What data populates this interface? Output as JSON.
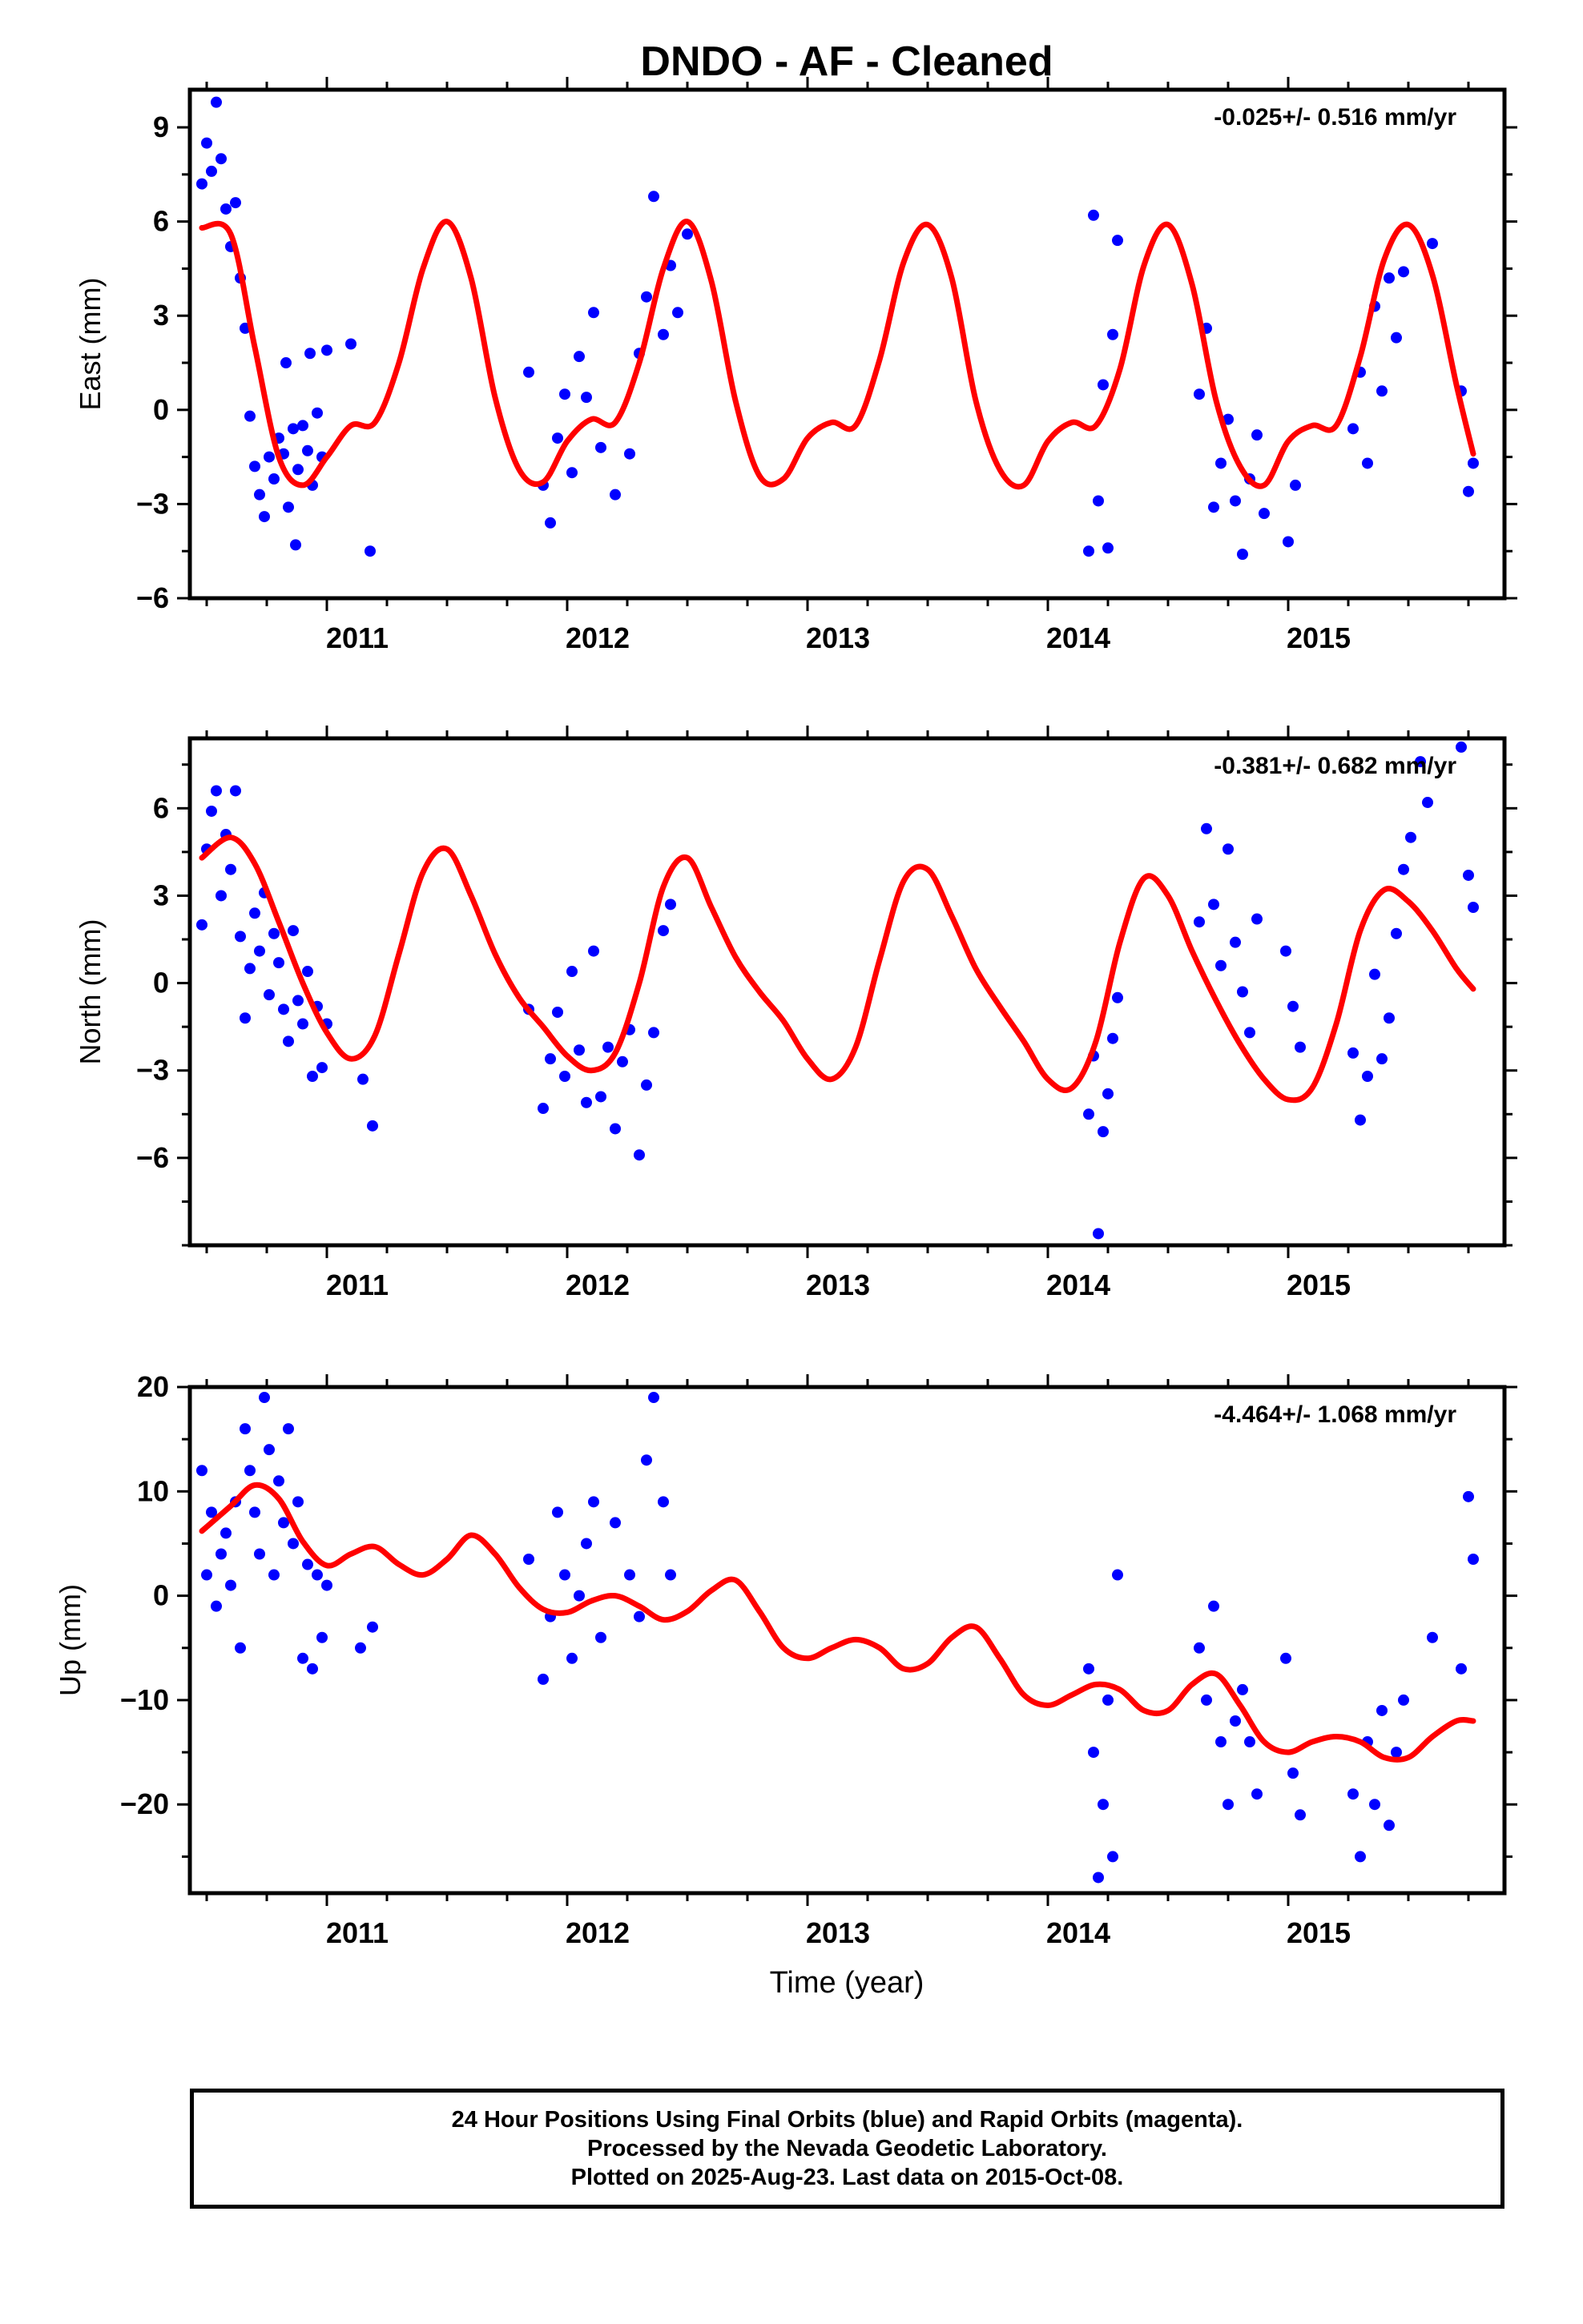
{
  "title": "DNDO  - AF - Cleaned",
  "colors": {
    "points": "#0000ff",
    "fit": "#ff0000",
    "axes": "#000000"
  },
  "footer": {
    "line1": "24 Hour Positions Using Final Orbits (blue) and Rapid Orbits (magenta).",
    "line2": "Processed by the Nevada Geodetic Laboratory.",
    "line3": "Plotted on 2025-Aug-23. Last data on 2015-Oct-08."
  },
  "chart_data": [
    {
      "type": "scatter",
      "ylabel": "East (mm)",
      "xlabel": "",
      "rate_label": "-0.025+/- 0.516 mm/yr",
      "xlim": [
        2010.43,
        2015.9
      ],
      "ylim": [
        -6,
        10.2
      ],
      "x_ticks": [
        2011,
        2012,
        2013,
        2014,
        2015
      ],
      "y_ticks": [
        -6,
        -3,
        0,
        3,
        6,
        9
      ],
      "grid": false,
      "series": [
        {
          "kind": "scatter",
          "x": [
            2010.48,
            2010.5,
            2010.52,
            2010.54,
            2010.56,
            2010.58,
            2010.6,
            2010.62,
            2010.64,
            2010.66,
            2010.68,
            2010.7,
            2010.72,
            2010.74,
            2010.76,
            2010.78,
            2010.8,
            2010.82,
            2010.84,
            2010.86,
            2010.88,
            2010.9,
            2010.92,
            2010.94,
            2010.96,
            2010.98,
            2011.0,
            2010.83,
            2010.87,
            2010.93,
            2011.1,
            2011.18,
            2011.84,
            2011.9,
            2011.93,
            2011.96,
            2011.99,
            2012.02,
            2012.05,
            2012.08,
            2012.11,
            2012.14,
            2012.2,
            2012.26,
            2012.3,
            2012.33,
            2012.36,
            2012.4,
            2012.43,
            2012.46,
            2012.5,
            2014.17,
            2014.19,
            2014.21,
            2014.23,
            2014.25,
            2014.27,
            2014.29,
            2014.63,
            2014.66,
            2014.69,
            2014.72,
            2014.75,
            2014.78,
            2014.81,
            2014.84,
            2014.87,
            2014.9,
            2015.0,
            2015.03,
            2015.27,
            2015.3,
            2015.33,
            2015.36,
            2015.39,
            2015.42,
            2015.45,
            2015.48,
            2015.6,
            2015.72,
            2015.75,
            2015.77
          ],
          "y": [
            7.2,
            8.5,
            7.6,
            9.8,
            8.0,
            6.4,
            5.2,
            6.6,
            4.2,
            2.6,
            -0.2,
            -1.8,
            -2.7,
            -3.4,
            -1.5,
            -2.2,
            -0.9,
            -1.4,
            -3.1,
            -0.6,
            -1.9,
            -0.5,
            -1.3,
            -2.4,
            -0.1,
            -1.5,
            1.9,
            1.5,
            -4.3,
            1.8,
            2.1,
            -4.5,
            1.2,
            -2.4,
            -3.6,
            -0.9,
            0.5,
            -2.0,
            1.7,
            0.4,
            3.1,
            -1.2,
            -2.7,
            -1.4,
            1.8,
            3.6,
            6.8,
            2.4,
            4.6,
            3.1,
            5.6,
            -4.5,
            6.2,
            -2.9,
            0.8,
            -4.4,
            2.4,
            5.4,
            0.5,
            2.6,
            -3.1,
            -1.7,
            -0.3,
            -2.9,
            -4.6,
            -2.2,
            -0.8,
            -3.3,
            -4.2,
            -2.4,
            -0.6,
            1.2,
            -1.7,
            3.3,
            0.6,
            4.2,
            2.3,
            4.4,
            5.3,
            0.6,
            -2.6,
            -1.7
          ]
        },
        {
          "kind": "line",
          "x": [
            2010.48,
            2010.6,
            2010.7,
            2010.8,
            2010.9,
            2011.0,
            2011.1,
            2011.2,
            2011.3,
            2011.4,
            2011.5,
            2011.6,
            2011.7,
            2011.8,
            2011.9,
            2012.0,
            2012.1,
            2012.2,
            2012.3,
            2012.4,
            2012.5,
            2012.6,
            2012.7,
            2012.8,
            2012.9,
            2013.0,
            2013.1,
            2013.2,
            2013.3,
            2013.4,
            2013.5,
            2013.6,
            2013.7,
            2013.8,
            2013.9,
            2014.0,
            2014.1,
            2014.2,
            2014.3,
            2014.4,
            2014.5,
            2014.6,
            2014.7,
            2014.8,
            2014.9,
            2015.0,
            2015.1,
            2015.2,
            2015.3,
            2015.4,
            2015.5,
            2015.6,
            2015.7,
            2015.77
          ],
          "y": [
            5.8,
            5.6,
            2.0,
            -1.5,
            -2.4,
            -1.5,
            -0.5,
            -0.4,
            1.5,
            4.5,
            6.0,
            4.2,
            0.4,
            -1.9,
            -2.3,
            -1.0,
            -0.3,
            -0.4,
            1.5,
            4.5,
            6.0,
            4.1,
            0.3,
            -2.1,
            -2.2,
            -0.9,
            -0.4,
            -0.5,
            1.6,
            4.7,
            5.9,
            4.2,
            0.3,
            -1.9,
            -2.4,
            -1.0,
            -0.4,
            -0.5,
            1.3,
            4.6,
            5.9,
            4.0,
            0.3,
            -1.8,
            -2.4,
            -1.0,
            -0.5,
            -0.5,
            1.7,
            4.8,
            5.9,
            4.3,
            0.8,
            -1.4
          ]
        }
      ]
    },
    {
      "type": "scatter",
      "ylabel": "North (mm)",
      "xlabel": "",
      "rate_label": "-0.381+/- 0.682 mm/yr",
      "xlim": [
        2010.43,
        2015.9
      ],
      "ylim": [
        -9,
        8.4
      ],
      "x_ticks": [
        2011,
        2012,
        2013,
        2014,
        2015
      ],
      "y_ticks": [
        -6,
        -3,
        0,
        3,
        6
      ],
      "grid": false,
      "series": [
        {
          "kind": "scatter",
          "x": [
            2010.48,
            2010.5,
            2010.52,
            2010.54,
            2010.56,
            2010.58,
            2010.6,
            2010.62,
            2010.64,
            2010.66,
            2010.68,
            2010.7,
            2010.72,
            2010.74,
            2010.76,
            2010.78,
            2010.8,
            2010.82,
            2010.84,
            2010.86,
            2010.88,
            2010.9,
            2010.92,
            2010.94,
            2010.96,
            2010.98,
            2011.0,
            2011.15,
            2011.19,
            2011.84,
            2011.9,
            2011.93,
            2011.96,
            2011.99,
            2012.02,
            2012.05,
            2012.08,
            2012.11,
            2012.14,
            2012.17,
            2012.2,
            2012.23,
            2012.26,
            2012.3,
            2012.33,
            2012.36,
            2012.4,
            2012.43,
            2014.17,
            2014.19,
            2014.21,
            2014.23,
            2014.25,
            2014.27,
            2014.29,
            2014.63,
            2014.66,
            2014.69,
            2014.72,
            2014.75,
            2014.78,
            2014.81,
            2014.84,
            2014.87,
            2014.99,
            2015.02,
            2015.05,
            2015.27,
            2015.3,
            2015.33,
            2015.36,
            2015.39,
            2015.42,
            2015.45,
            2015.48,
            2015.51,
            2015.55,
            2015.58,
            2015.72,
            2015.75,
            2015.77
          ],
          "y": [
            2.0,
            4.6,
            5.9,
            6.6,
            3.0,
            5.1,
            3.9,
            6.6,
            1.6,
            -1.2,
            0.5,
            2.4,
            1.1,
            3.1,
            -0.4,
            1.7,
            0.7,
            -0.9,
            -2.0,
            1.8,
            -0.6,
            -1.4,
            0.4,
            -3.2,
            -0.8,
            -2.9,
            -1.4,
            -3.3,
            -4.9,
            -0.9,
            -4.3,
            -2.6,
            -1.0,
            -3.2,
            0.4,
            -2.3,
            -4.1,
            1.1,
            -3.9,
            -2.2,
            -5.0,
            -2.7,
            -1.6,
            -5.9,
            -3.5,
            -1.7,
            1.8,
            2.7,
            -4.5,
            -2.5,
            -8.6,
            -5.1,
            -3.8,
            -1.9,
            -0.5,
            2.1,
            5.3,
            2.7,
            0.6,
            4.6,
            1.4,
            -0.3,
            -1.7,
            2.2,
            1.1,
            -0.8,
            -2.2,
            -2.4,
            -4.7,
            -3.2,
            0.3,
            -2.6,
            -1.2,
            1.7,
            3.9,
            5.0,
            7.6,
            6.2,
            8.1,
            3.7,
            2.6
          ]
        },
        {
          "kind": "line",
          "x": [
            2010.48,
            2010.6,
            2010.7,
            2010.8,
            2010.9,
            2011.0,
            2011.1,
            2011.2,
            2011.3,
            2011.4,
            2011.5,
            2011.6,
            2011.7,
            2011.8,
            2011.9,
            2012.0,
            2012.1,
            2012.2,
            2012.3,
            2012.4,
            2012.5,
            2012.6,
            2012.7,
            2012.8,
            2012.9,
            2013.0,
            2013.1,
            2013.2,
            2013.3,
            2013.4,
            2013.5,
            2013.6,
            2013.7,
            2013.8,
            2013.9,
            2014.0,
            2014.1,
            2014.2,
            2014.3,
            2014.4,
            2014.5,
            2014.6,
            2014.7,
            2014.8,
            2014.9,
            2015.0,
            2015.1,
            2015.2,
            2015.3,
            2015.4,
            2015.5,
            2015.6,
            2015.7,
            2015.77
          ],
          "y": [
            4.3,
            5.0,
            4.1,
            2.1,
            0.0,
            -1.7,
            -2.6,
            -1.8,
            1.0,
            3.8,
            4.6,
            3.0,
            1.0,
            -0.5,
            -1.5,
            -2.5,
            -3.0,
            -2.4,
            0.0,
            3.3,
            4.3,
            2.6,
            0.9,
            -0.3,
            -1.3,
            -2.6,
            -3.3,
            -2.2,
            0.8,
            3.5,
            3.9,
            2.3,
            0.5,
            -0.8,
            -2.0,
            -3.3,
            -3.6,
            -2.0,
            1.4,
            3.6,
            3.0,
            1.1,
            -0.6,
            -2.1,
            -3.3,
            -4.0,
            -3.6,
            -1.4,
            1.8,
            3.2,
            2.8,
            1.8,
            0.5,
            -0.2
          ]
        }
      ]
    },
    {
      "type": "scatter",
      "ylabel": "Up (mm)",
      "xlabel": "Time (year)",
      "rate_label": "-4.464+/- 1.068 mm/yr",
      "xlim": [
        2010.43,
        2015.9
      ],
      "ylim": [
        -28.5,
        20
      ],
      "x_ticks": [
        2011,
        2012,
        2013,
        2014,
        2015
      ],
      "y_ticks": [
        -20,
        -10,
        0,
        10,
        20
      ],
      "grid": false,
      "series": [
        {
          "kind": "scatter",
          "x": [
            2010.48,
            2010.5,
            2010.52,
            2010.54,
            2010.56,
            2010.58,
            2010.6,
            2010.62,
            2010.64,
            2010.66,
            2010.68,
            2010.7,
            2010.72,
            2010.74,
            2010.76,
            2010.78,
            2010.8,
            2010.82,
            2010.84,
            2010.86,
            2010.88,
            2010.9,
            2010.92,
            2010.94,
            2010.96,
            2010.98,
            2011.0,
            2011.14,
            2011.19,
            2011.84,
            2011.9,
            2011.93,
            2011.96,
            2011.99,
            2012.02,
            2012.05,
            2012.08,
            2012.11,
            2012.14,
            2012.2,
            2012.26,
            2012.3,
            2012.33,
            2012.36,
            2012.4,
            2012.43,
            2014.17,
            2014.19,
            2014.21,
            2014.23,
            2014.25,
            2014.27,
            2014.29,
            2014.63,
            2014.66,
            2014.69,
            2014.72,
            2014.75,
            2014.78,
            2014.81,
            2014.84,
            2014.87,
            2014.99,
            2015.02,
            2015.05,
            2015.27,
            2015.3,
            2015.33,
            2015.36,
            2015.39,
            2015.42,
            2015.45,
            2015.48,
            2015.6,
            2015.72,
            2015.75,
            2015.77
          ],
          "y": [
            12.0,
            2.0,
            8.0,
            -1.0,
            4.0,
            6.0,
            1.0,
            9.0,
            -5.0,
            16.0,
            12.0,
            8.0,
            4.0,
            19.0,
            14.0,
            2.0,
            11.0,
            7.0,
            16.0,
            5.0,
            9.0,
            -6.0,
            3.0,
            -7.0,
            2.0,
            -4.0,
            1.0,
            -5.0,
            -3.0,
            3.5,
            -8.0,
            -2.0,
            8.0,
            2.0,
            -6.0,
            0.0,
            5.0,
            9.0,
            -4.0,
            7.0,
            2.0,
            -2.0,
            13.0,
            19.0,
            9.0,
            2.0,
            -7.0,
            -15.0,
            -27.0,
            -20.0,
            -10.0,
            -25.0,
            2.0,
            -5.0,
            -10.0,
            -1.0,
            -14.0,
            -20.0,
            -12.0,
            -9.0,
            -14.0,
            -19.0,
            -6.0,
            -17.0,
            -21.0,
            -19.0,
            -25.0,
            -14.0,
            -20.0,
            -11.0,
            -22.0,
            -15.0,
            -10.0,
            -4.0,
            -7.0,
            9.5,
            3.5
          ]
        },
        {
          "kind": "line",
          "x": [
            2010.48,
            2010.6,
            2010.7,
            2010.8,
            2010.9,
            2011.0,
            2011.1,
            2011.2,
            2011.3,
            2011.4,
            2011.5,
            2011.6,
            2011.7,
            2011.8,
            2011.9,
            2012.0,
            2012.1,
            2012.2,
            2012.3,
            2012.4,
            2012.5,
            2012.6,
            2012.7,
            2012.8,
            2012.9,
            2013.0,
            2013.1,
            2013.2,
            2013.3,
            2013.4,
            2013.5,
            2013.6,
            2013.7,
            2013.8,
            2013.9,
            2014.0,
            2014.1,
            2014.2,
            2014.3,
            2014.4,
            2014.5,
            2014.6,
            2014.7,
            2014.8,
            2014.9,
            2015.0,
            2015.1,
            2015.2,
            2015.3,
            2015.4,
            2015.5,
            2015.6,
            2015.7,
            2015.77
          ],
          "y": [
            6.2,
            8.6,
            10.6,
            9.3,
            5.2,
            2.9,
            4.0,
            4.7,
            3.0,
            2.0,
            3.5,
            5.8,
            4.0,
            0.8,
            -1.3,
            -1.6,
            -0.5,
            0.0,
            -1.0,
            -2.3,
            -1.5,
            0.5,
            1.5,
            -1.5,
            -5.0,
            -6.0,
            -5.0,
            -4.2,
            -5.0,
            -7.0,
            -6.5,
            -4.0,
            -3.0,
            -6.0,
            -9.5,
            -10.5,
            -9.5,
            -8.5,
            -9.0,
            -11.0,
            -11.0,
            -8.5,
            -7.5,
            -10.5,
            -14.0,
            -15.0,
            -14.0,
            -13.5,
            -14.0,
            -15.5,
            -15.5,
            -13.5,
            -12.0,
            -12.0
          ]
        }
      ]
    }
  ]
}
